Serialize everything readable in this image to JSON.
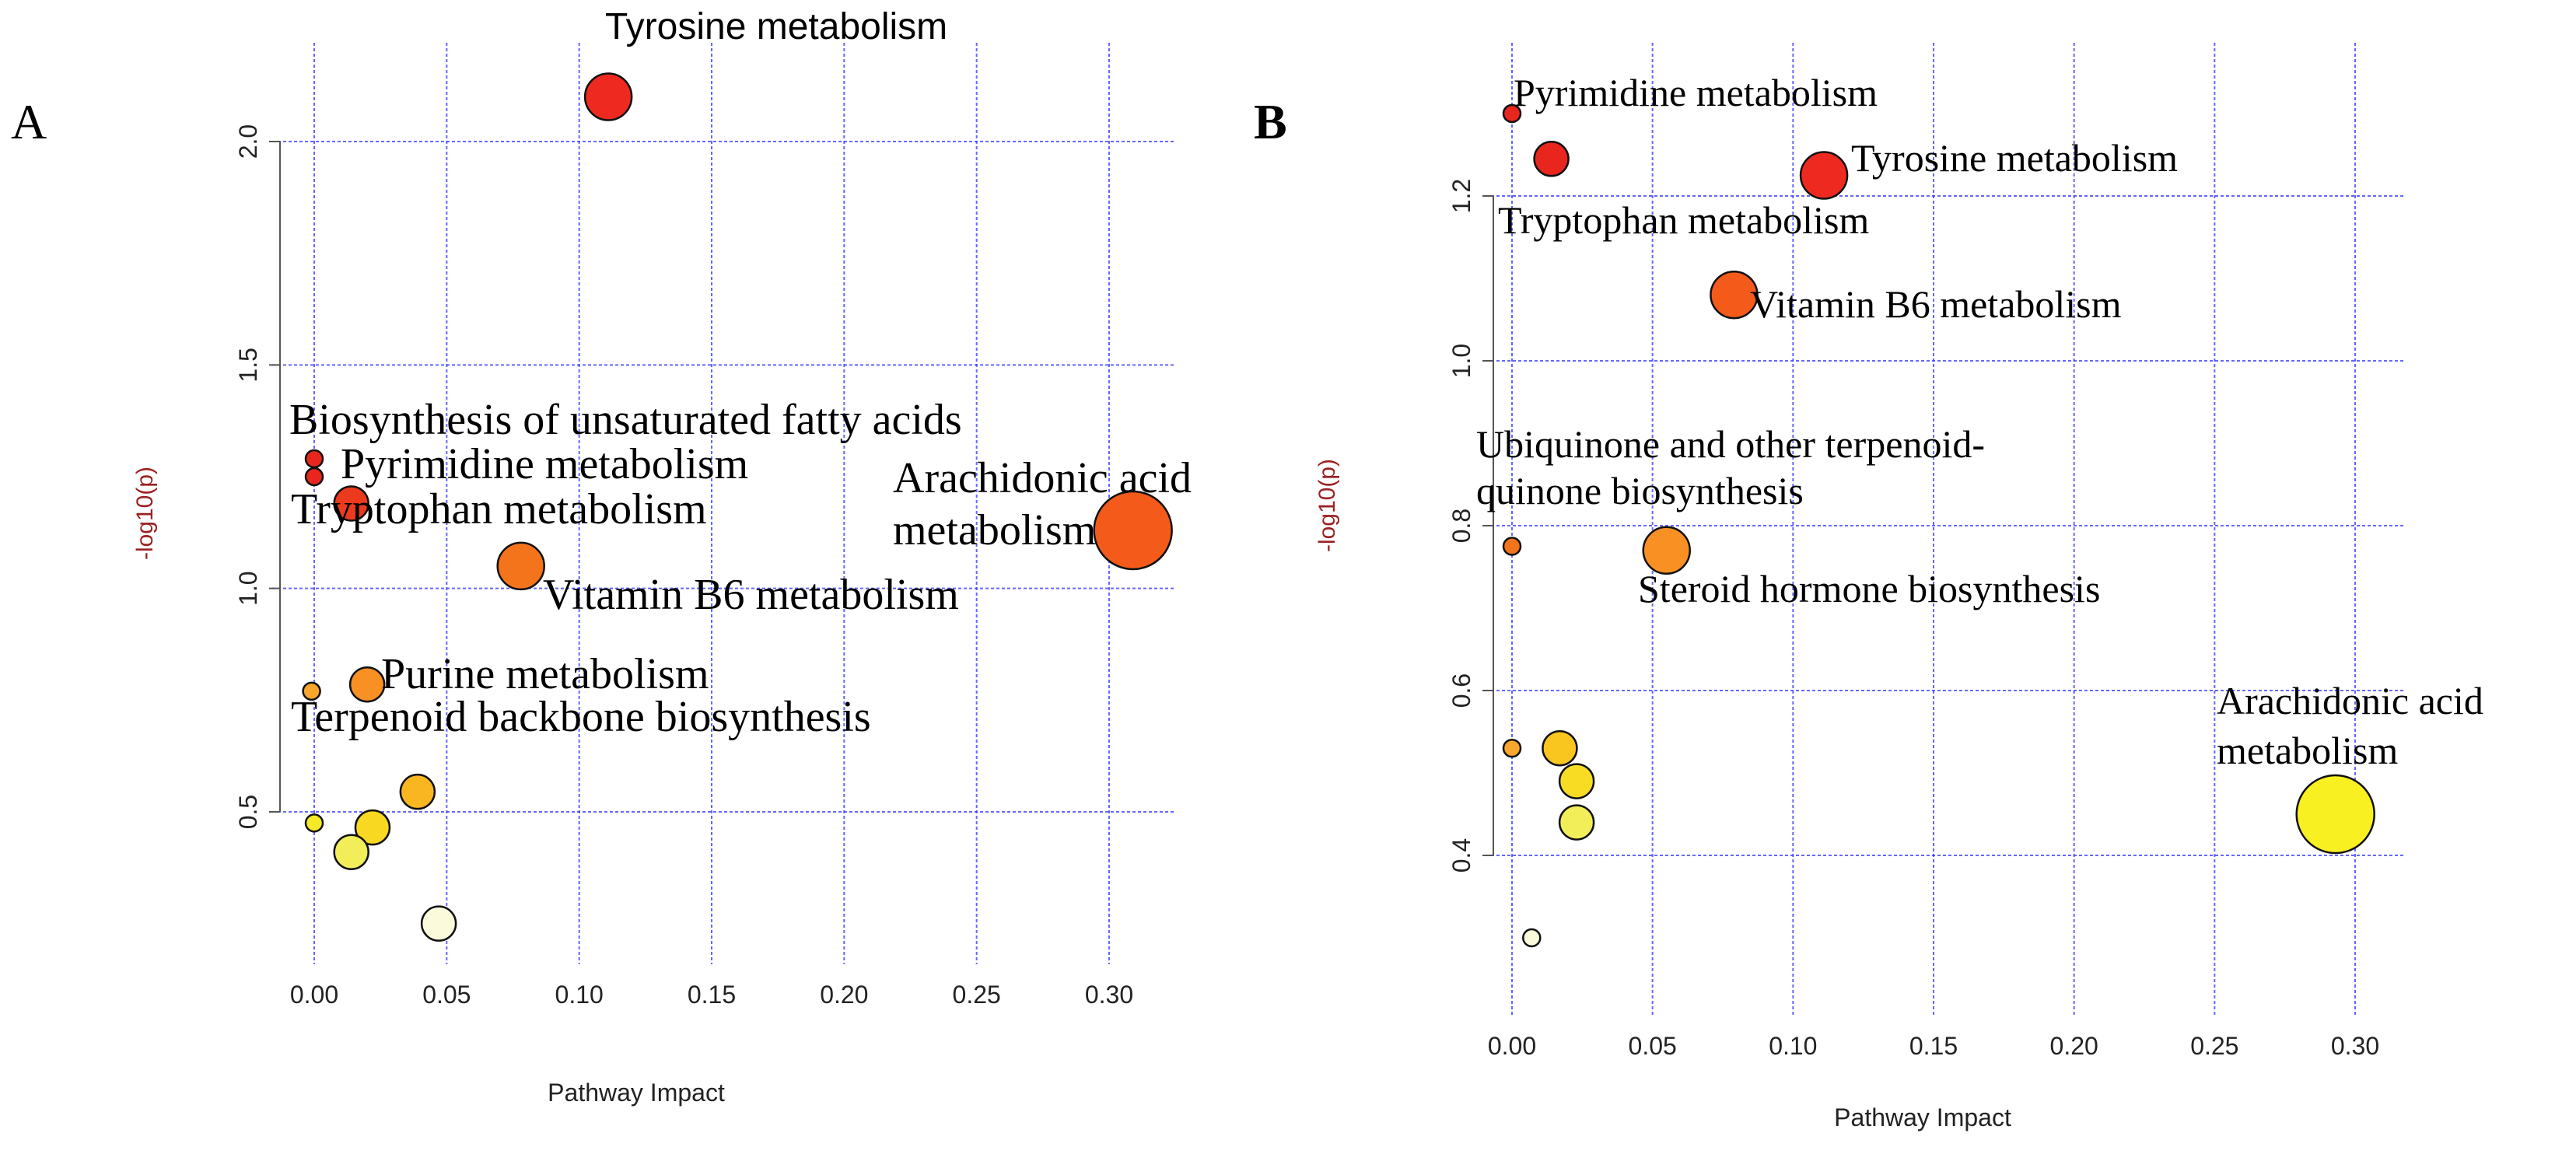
{
  "chart_data": [
    {
      "panel": "A",
      "type": "scatter",
      "xlabel": "Pathway Impact",
      "ylabel": "-log10(p)",
      "xlim": [
        -0.01,
        0.32
      ],
      "ylim": [
        0.2,
        2.2
      ],
      "xticks": [
        "0.00",
        "0.05",
        "0.10",
        "0.15",
        "0.20",
        "0.25",
        "0.30"
      ],
      "yticks": [
        "0.5",
        "1.0",
        "1.5",
        "2.0"
      ],
      "grid": true,
      "points": [
        {
          "x": 0.111,
          "y": 2.1,
          "size": 3,
          "color": "#ee2a20",
          "label": "Tyrosine metabolism"
        },
        {
          "x": 0.0,
          "y": 1.29,
          "size": 1,
          "color": "#e8261e",
          "label": "Biosynthesis of unsaturated fatty acids"
        },
        {
          "x": 0.0,
          "y": 1.25,
          "size": 1,
          "color": "#e8261e",
          "label": "Pyrimidine metabolism"
        },
        {
          "x": 0.014,
          "y": 1.19,
          "size": 2,
          "color": "#ec3a1e",
          "label": "Tryptophan metabolism"
        },
        {
          "x": 0.309,
          "y": 1.13,
          "size": 5,
          "color": "#f45a1a",
          "label": "Arachidonic acid metabolism"
        },
        {
          "x": 0.078,
          "y": 1.05,
          "size": 3,
          "color": "#f4741c",
          "label": "Vitamin B6 metabolism"
        },
        {
          "x": 0.02,
          "y": 0.785,
          "size": 2,
          "color": "#f89024",
          "label": "Purine metabolism"
        },
        {
          "x": -0.001,
          "y": 0.77,
          "size": 1,
          "color": "#f9a62e",
          "label": "Terpenoid backbone biosynthesis"
        },
        {
          "x": 0.039,
          "y": 0.545,
          "size": 2,
          "color": "#f9b620",
          "label": ""
        },
        {
          "x": 0.022,
          "y": 0.465,
          "size": 2,
          "color": "#f8d820",
          "label": ""
        },
        {
          "x": 0.0,
          "y": 0.475,
          "size": 1,
          "color": "#f4ea28",
          "label": ""
        },
        {
          "x": 0.014,
          "y": 0.41,
          "size": 2,
          "color": "#f1ee5a",
          "label": ""
        },
        {
          "x": 0.047,
          "y": 0.25,
          "size": 2,
          "color": "#fbfbdc",
          "label": ""
        }
      ]
    },
    {
      "panel": "B",
      "type": "scatter",
      "xlabel": "Pathway Impact",
      "ylabel": "-log10(p)",
      "xlim": [
        -0.01,
        0.31
      ],
      "ylim": [
        0.26,
        1.36
      ],
      "xticks": [
        "0.00",
        "0.05",
        "0.10",
        "0.15",
        "0.20",
        "0.25",
        "0.30"
      ],
      "yticks": [
        "0.4",
        "0.6",
        "0.8",
        "1.0",
        "1.2"
      ],
      "grid": true,
      "points": [
        {
          "x": 0.0,
          "y": 1.3,
          "size": 1,
          "color": "#e8261e",
          "label": "Pyrimidine metabolism"
        },
        {
          "x": 0.014,
          "y": 1.245,
          "size": 2,
          "color": "#e8261e",
          "label": "Tryptophan metabolism"
        },
        {
          "x": 0.111,
          "y": 1.225,
          "size": 3,
          "color": "#ee2a20",
          "label": "Tyrosine metabolism"
        },
        {
          "x": 0.079,
          "y": 1.08,
          "size": 3,
          "color": "#f45a1a",
          "label": "Vitamin B6 metabolism"
        },
        {
          "x": 0.0,
          "y": 0.775,
          "size": 1,
          "color": "#f4741c",
          "label": "Ubiquinone and other terpenoid-quinone biosynthesis"
        },
        {
          "x": 0.055,
          "y": 0.77,
          "size": 3,
          "color": "#f89024",
          "label": "Steroid hormone biosynthesis"
        },
        {
          "x": 0.0,
          "y": 0.53,
          "size": 1,
          "color": "#f9a62e",
          "label": ""
        },
        {
          "x": 0.017,
          "y": 0.53,
          "size": 2,
          "color": "#f9c620",
          "label": ""
        },
        {
          "x": 0.023,
          "y": 0.49,
          "size": 2,
          "color": "#f8dc24",
          "label": ""
        },
        {
          "x": 0.023,
          "y": 0.44,
          "size": 2,
          "color": "#f1ee5a",
          "label": ""
        },
        {
          "x": 0.293,
          "y": 0.45,
          "size": 5,
          "color": "#f8f021",
          "label": "Arachidonic acid metabolism"
        },
        {
          "x": 0.007,
          "y": 0.3,
          "size": 1,
          "color": "#fbfbdc",
          "label": ""
        }
      ]
    }
  ],
  "panels": {
    "a": {
      "label": "A",
      "annotations": {
        "tyrosine": "Tyrosine metabolism",
        "biosynthesis": "Biosynthesis of unsaturated fatty acids",
        "pyrimidine": "Pyrimidine metabolism",
        "tryptophan": "Tryptophan metabolism",
        "arachidonic_1": "Arachidonic acid",
        "arachidonic_2": "metabolism",
        "vitaminb6": "Vitamin B6 metabolism",
        "purine": "Purine metabolism",
        "terpenoid": "Terpenoid backbone biosynthesis"
      },
      "xlabel": "Pathway Impact",
      "ylabel": "-log10(p)"
    },
    "b": {
      "label": "B",
      "annotations": {
        "pyrimidine": "Pyrimidine metabolism",
        "tyrosine": "Tyrosine metabolism",
        "tryptophan": "Tryptophan metabolism",
        "vitaminb6": "Vitamin B6 metabolism",
        "ubiquinone_1": "Ubiquinone and other terpenoid-",
        "ubiquinone_2": "quinone biosynthesis",
        "steroid": "Steroid hormone biosynthesis",
        "arachidonic_1": "Arachidonic acid",
        "arachidonic_2": "metabolism"
      },
      "xlabel": "Pathway Impact",
      "ylabel": "-log10(p)"
    }
  }
}
